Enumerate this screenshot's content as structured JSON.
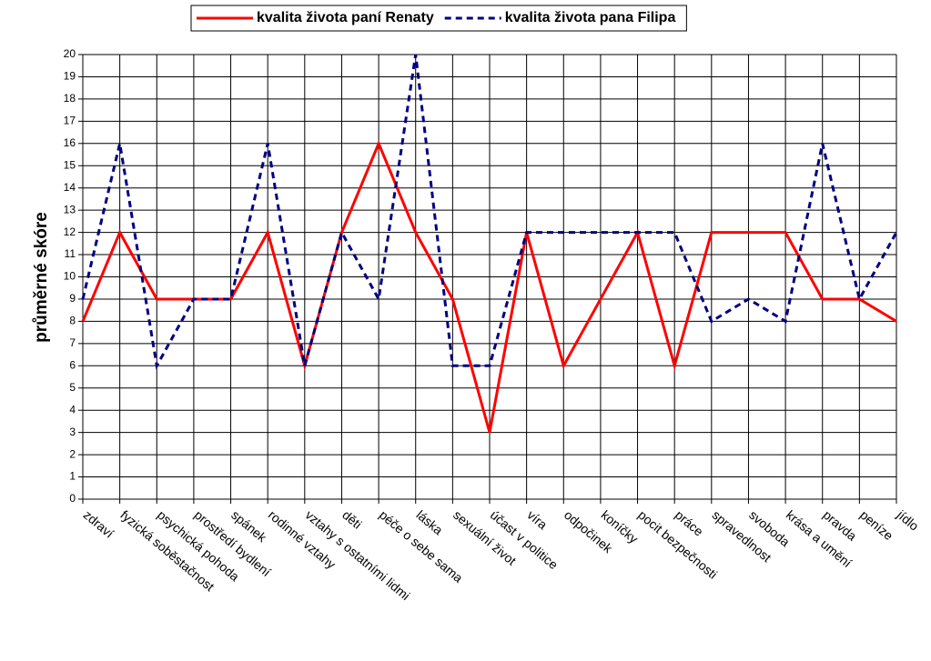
{
  "chart_data": {
    "type": "line",
    "y_label": "průměrné skóre",
    "categories": [
      "zdraví",
      "fyzická soběstačnost",
      "psychická pohoda",
      "prostředí bydlení",
      "spánek",
      "rodinné vztahy",
      "vztahy s ostatními lidmi",
      "děti",
      "péče o sebe sama",
      "láska",
      "sexuální život",
      "účast v politice",
      "víra",
      "odpočinek",
      "koníčky",
      "pocit bezpečnosti",
      "práce",
      "spravedlnost",
      "svoboda",
      "krása a umění",
      "pravda",
      "peníze",
      "jídlo"
    ],
    "series": [
      {
        "name": "kvalita života paní Renaty",
        "color": "#ff0000",
        "line_style": "solid",
        "values": [
          8,
          12,
          9,
          9,
          9,
          12,
          6,
          12,
          16,
          12,
          9,
          3,
          12,
          6,
          9,
          12,
          6,
          12,
          12,
          12,
          9,
          9,
          8
        ]
      },
      {
        "name": "kvalita života pana Filipa",
        "color": "#000080",
        "line_style": "dashed",
        "values": [
          9,
          16,
          6,
          9,
          9,
          16,
          6,
          12,
          9,
          20,
          6,
          6,
          12,
          12,
          12,
          12,
          12,
          8,
          9,
          8,
          16,
          9,
          12
        ]
      }
    ],
    "ylim": [
      0,
      20
    ],
    "yticks": [
      0,
      1,
      2,
      3,
      4,
      5,
      6,
      7,
      8,
      9,
      10,
      11,
      12,
      13,
      14,
      15,
      16,
      17,
      18,
      19,
      20
    ],
    "grid": true,
    "legend": "top"
  }
}
